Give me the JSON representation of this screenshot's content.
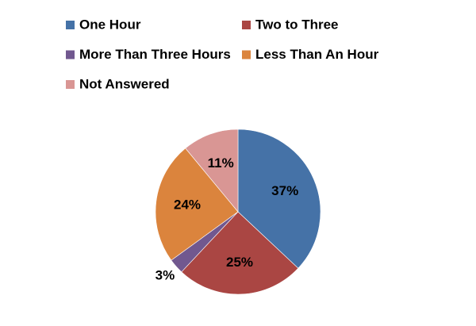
{
  "chart_data": {
    "type": "pie",
    "categories": [
      "One Hour",
      "Two to Three",
      "More Than Three Hours",
      "Less Than An Hour",
      "Not Answered"
    ],
    "values": [
      37,
      25,
      3,
      24,
      11
    ],
    "value_labels": [
      "37%",
      "25%",
      "3%",
      "24%",
      "11%"
    ],
    "colors": [
      "#4572a7",
      "#aa4643",
      "#71588f",
      "#db843d",
      "#d99694"
    ],
    "legend": "top"
  }
}
